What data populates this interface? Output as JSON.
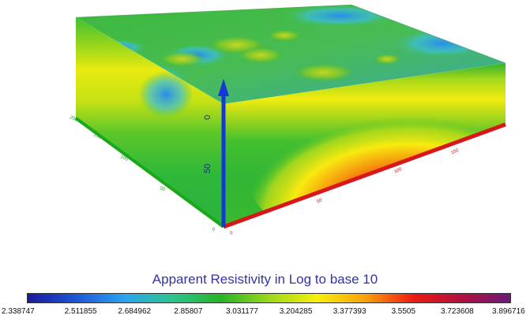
{
  "colorbar": {
    "title": "Apparent Resistivity in Log to base 10",
    "ticks": [
      "2.338747",
      "2.511855",
      "2.684962",
      "2.85807",
      "3.031177",
      "3.204285",
      "3.377393",
      "3.5505",
      "3.723608",
      "3.896716"
    ],
    "stops": [
      "#1a1a9a",
      "#1f55d8",
      "#2aa3f0",
      "#2cc48e",
      "#27b328",
      "#9ad81a",
      "#f7f00c",
      "#f9a00c",
      "#ec1b10",
      "#b0103e",
      "#6a1a7a"
    ]
  },
  "axis_labels": {
    "vertical": [
      "0",
      "50"
    ],
    "left_axis": [
      "200",
      "150",
      "100",
      "50",
      "0"
    ],
    "front_axis": [
      "0",
      "50",
      "100",
      "150"
    ]
  },
  "colors": {
    "vertical_axis": "#1438d8",
    "left_axis": "#1aa81a",
    "front_axis": "#d81818"
  }
}
